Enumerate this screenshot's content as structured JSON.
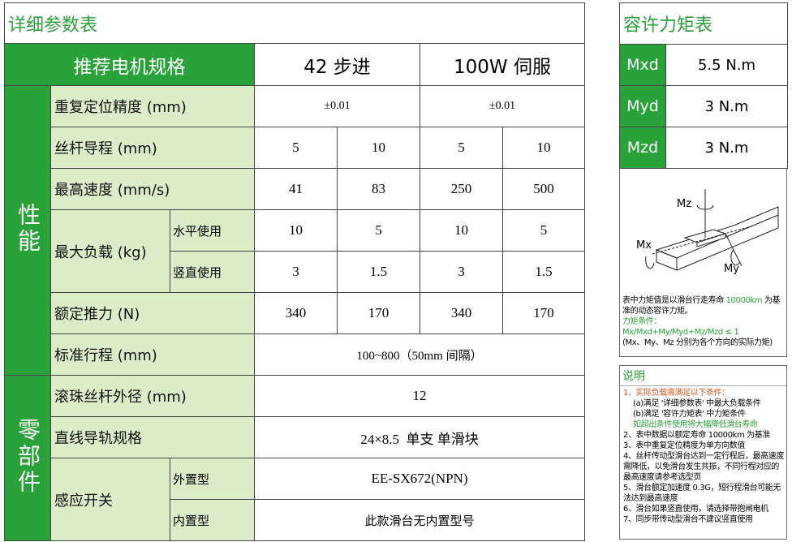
{
  "spec_table": {
    "title": "详细参数表",
    "header": {
      "label": "推荐电机规格",
      "columns": [
        "42 步进",
        "100W 伺服"
      ]
    },
    "groups": [
      "性能",
      "零部件"
    ],
    "rows": [
      {
        "label": "重复定位精度 (mm)",
        "values": [
          "±0.01",
          "±0.01"
        ]
      },
      {
        "label": "丝杆导程 (mm)",
        "values": [
          "5",
          "10",
          "5",
          "10"
        ]
      },
      {
        "label": "最高速度 (mm/s)",
        "values": [
          "41",
          "83",
          "250",
          "500"
        ]
      },
      {
        "label": "最大负载 (kg)",
        "sub_rows": [
          {
            "label": "水平使用",
            "values": [
              "10",
              "5",
              "10",
              "5"
            ]
          },
          {
            "label": "竖直使用",
            "values": [
              "3",
              "1.5",
              "3",
              "1.5"
            ]
          }
        ]
      },
      {
        "label": "额定推力 (N)",
        "values": [
          "340",
          "170",
          "340",
          "170"
        ]
      },
      {
        "label": "标准行程 (mm)",
        "values": [
          "100~800（50mm 间隔）"
        ]
      },
      {
        "label": "滚珠丝杆外径 (mm)",
        "values": [
          "12"
        ]
      },
      {
        "label": "直线导轨规格",
        "values": [
          "24×8.5  单支 单滑块"
        ]
      },
      {
        "label": "感应开关",
        "sub_rows": [
          {
            "label": "外置型",
            "values": [
              "EE-SX672(NPN)"
            ]
          },
          {
            "label": "内置型",
            "values": [
              "此款滑台无内置型号"
            ]
          }
        ]
      }
    ]
  },
  "torque_table": {
    "title": "容许力矩表",
    "rows": [
      {
        "name": "Mxd",
        "value": "5.5 N.m"
      },
      {
        "name": "Myd",
        "value": "3 N.m"
      },
      {
        "name": "Mzd",
        "value": "3 N.m"
      }
    ],
    "diagram_labels": [
      "Mz",
      "Mx",
      "My"
    ],
    "note": [
      "表中力矩值是以滑台行走寿命 ",
      "10000km",
      " 为基准的动态容许力矩。"
    ],
    "condition_title": "力矩条件：",
    "condition": "Mx/Mxd+My/Myd+Mz/Mzd ≤ 1",
    "condition_note": "(Mx、My、Mz 分别为各个方向的实际力矩)"
  },
  "notes": {
    "title": "说明",
    "items": [
      "1、实际负载需满足以下条件：",
      "(a)满足 '详细参数表' 中最大负载条件",
      "(b)满足 '容许力矩表' 中力矩条件",
      "如超出条件使用将大幅降低滑台寿命",
      "2、表中数据以额定寿命 10000km 为基准",
      "3、表中重复定位精度为单方向数值",
      "4、丝杆传动型滑台达到一定行程后，最高速度需降低，以免滑台发生共振，不同行程对应的最高速度请参考选型页",
      "5、滑台额定加速度 0.3G，短行程滑台可能无法达到最高速度",
      "6、滑台如果竖直使用，请选择带抱闸电机",
      "7、同步带传动型滑台不建议竖直使用"
    ]
  }
}
